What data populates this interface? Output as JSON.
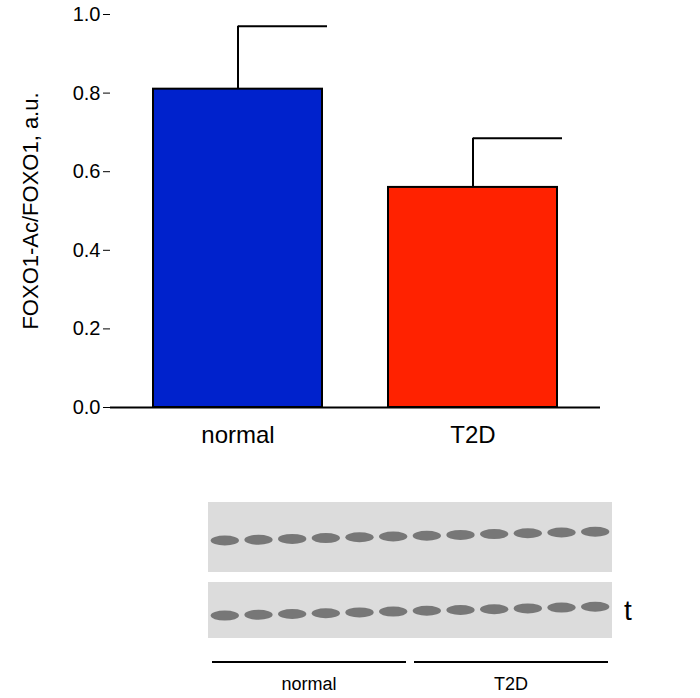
{
  "chart_data": {
    "type": "bar",
    "y_label": "FOXO1-Ac/FOXO1, a.u.",
    "categories": [
      "normal",
      "T2D"
    ],
    "values": [
      0.81,
      0.56
    ],
    "error_plus": [
      0.16,
      0.125
    ],
    "colors": [
      "#0022cc",
      "#ff2200"
    ],
    "ylim": [
      0,
      1
    ],
    "yticks": [
      {
        "value": 0,
        "label": "0.0"
      },
      {
        "value": 0.2,
        "label": "0.2"
      },
      {
        "value": 0.4,
        "label": "0.4"
      },
      {
        "value": 0.6,
        "label": "0.6"
      },
      {
        "value": 0.8,
        "label": "0.8"
      },
      {
        "value": 1,
        "label": "1.0"
      }
    ]
  },
  "blot": {
    "groups": [
      "normal",
      "T2D"
    ],
    "lanes_per_group": 6,
    "side_label": "t"
  }
}
